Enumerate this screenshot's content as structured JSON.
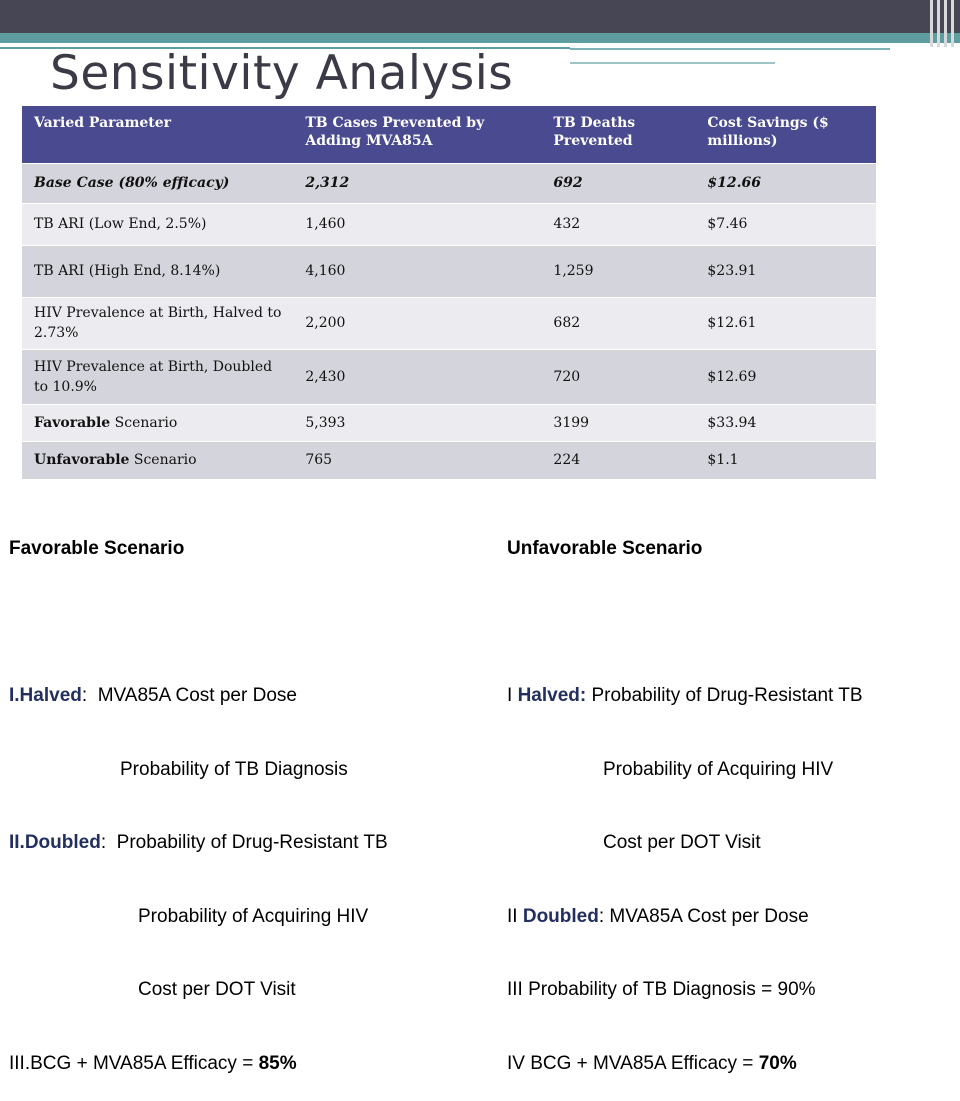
{
  "slide": {
    "title": "Sensitivity Analysis"
  },
  "table": {
    "headers": [
      "Varied Parameter",
      "TB Cases Prevented by Adding MVA85A",
      "TB Deaths Prevented",
      "Cost Savings ($ millions)"
    ],
    "rows": [
      {
        "param": "Base Case (80% efficacy)",
        "cases": "2,312",
        "deaths": "692",
        "cost": "$12.66"
      },
      {
        "param": "TB ARI (Low End, 2.5%)",
        "cases": "1,460",
        "deaths": "432",
        "cost": "$7.46"
      },
      {
        "param": "TB ARI (High End, 8.14%)",
        "cases": "4,160",
        "deaths": "1,259",
        "cost": "$23.91"
      },
      {
        "param": "HIV Prevalence at Birth, Halved to  2.73%",
        "cases": "2,200",
        "deaths": "682",
        "cost": "$12.61"
      },
      {
        "param": "HIV Prevalence at Birth, Doubled to  10.9%",
        "cases": "2,430",
        "deaths": "720",
        "cost": "$12.69"
      },
      {
        "param_bold": "Favorable",
        "param_rest": " Scenario",
        "cases": "5,393",
        "deaths": "3199",
        "cost": "$33.94"
      },
      {
        "param_bold": "Unfavorable",
        "param_rest": " Scenario",
        "cases": "765",
        "deaths": "224",
        "cost": "$1.1"
      }
    ]
  },
  "favorable": {
    "heading": "Favorable Scenario",
    "l1_bold": "I.Halved",
    "l1_rest": ":  MVA85A Cost per Dose",
    "l2": "Probability of TB Diagnosis",
    "l3_bold": "II.Doubled",
    "l3_rest": ":  Probability of Drug-Resistant TB",
    "l4": "Probability of Acquiring HIV",
    "l5": "Cost per DOT Visit",
    "l6_rest": "III.BCG + MVA85A Efficacy = ",
    "l6_bold": "85%"
  },
  "unfavorable": {
    "heading": "Unfavorable Scenario",
    "l1_pre": "I ",
    "l1_bold": "Halved:",
    "l1_rest": " Probability of Drug-Resistant TB",
    "l2": "Probability of Acquiring HIV",
    "l3": "Cost per DOT Visit",
    "l4_pre": "II ",
    "l4_bold": "Doubled",
    "l4_rest": ": MVA85A Cost per Dose",
    "l5": "III Probability of TB Diagnosis = 90%",
    "l6_rest": "IV BCG + MVA85A Efficacy = ",
    "l6_bold": "70%"
  }
}
